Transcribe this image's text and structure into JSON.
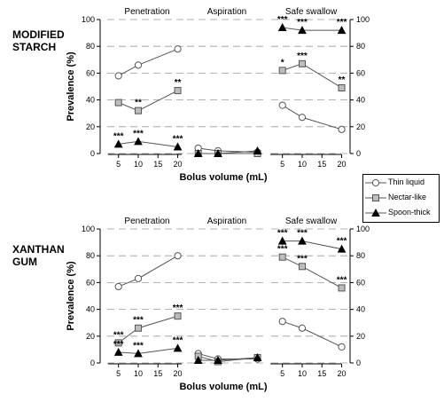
{
  "row_labels": {
    "top": "MODIFIED\nSTARCH",
    "bottom": "XANTHAN\nGUM"
  },
  "legend": [
    {
      "name": "Thin liquid",
      "marker": "circle",
      "fill": "#ffffff"
    },
    {
      "name": "Nectar-like",
      "marker": "square",
      "fill": "#bdbdbd"
    },
    {
      "name": "Spoon-thick",
      "marker": "triangle",
      "fill": "#000000"
    }
  ],
  "colors": {
    "line": "#555555",
    "grid": "#999999",
    "square_fill": "#bdbdbd",
    "triangle_fill": "#000000"
  },
  "chart_data": [
    {
      "type": "line",
      "row_label": "MODIFIED STARCH",
      "ylabel": "Prevalence (%)",
      "xlabel": "Bolus volume (mL)",
      "ylim": [
        0,
        100
      ],
      "yticks": [
        0,
        20,
        40,
        60,
        80,
        100
      ],
      "x_ticks": [
        5,
        10,
        15,
        20
      ],
      "grid": "dashed horizontal",
      "panels": [
        {
          "title": "Penetration",
          "x": [
            5,
            10,
            20
          ],
          "series": [
            {
              "name": "Thin liquid",
              "values": [
                58,
                66,
                78
              ],
              "annotations": [
                "",
                "",
                ""
              ]
            },
            {
              "name": "Nectar-like",
              "values": [
                38,
                32,
                47
              ],
              "annotations": [
                "",
                "**",
                "**"
              ]
            },
            {
              "name": "Spoon-thick",
              "values": [
                7,
                9,
                5
              ],
              "annotations": [
                "***",
                "***",
                "***"
              ]
            }
          ]
        },
        {
          "title": "Aspiration",
          "x": [
            5,
            10,
            20
          ],
          "series": [
            {
              "name": "Thin liquid",
              "values": [
                4,
                2,
                1
              ],
              "annotations": [
                "",
                "",
                ""
              ]
            },
            {
              "name": "Nectar-like",
              "values": [
                0,
                0,
                0
              ],
              "annotations": [
                "",
                "",
                ""
              ]
            },
            {
              "name": "Spoon-thick",
              "values": [
                0,
                0,
                2
              ],
              "annotations": [
                "",
                "",
                ""
              ]
            }
          ]
        },
        {
          "title": "Safe swallow",
          "x": [
            5,
            10,
            20
          ],
          "series": [
            {
              "name": "Thin liquid",
              "values": [
                36,
                27,
                18
              ],
              "annotations": [
                "",
                "",
                ""
              ]
            },
            {
              "name": "Nectar-like",
              "values": [
                62,
                67,
                49
              ],
              "annotations": [
                "*",
                "***",
                "**"
              ]
            },
            {
              "name": "Spoon-thick",
              "values": [
                94,
                92,
                92
              ],
              "annotations": [
                "***",
                "***",
                "***"
              ]
            }
          ]
        }
      ]
    },
    {
      "type": "line",
      "row_label": "XANTHAN GUM",
      "ylabel": "Prevalence (%)",
      "xlabel": "Bolus volume (mL)",
      "ylim": [
        0,
        100
      ],
      "yticks": [
        0,
        20,
        40,
        60,
        80,
        100
      ],
      "x_ticks": [
        5,
        10,
        15,
        20
      ],
      "grid": "dashed horizontal",
      "panels": [
        {
          "title": "Penetration",
          "x": [
            5,
            10,
            20
          ],
          "series": [
            {
              "name": "Thin liquid",
              "values": [
                57,
                63,
                80
              ],
              "annotations": [
                "",
                "",
                ""
              ]
            },
            {
              "name": "Nectar-like",
              "values": [
                15,
                26,
                35
              ],
              "annotations": [
                "***",
                "***",
                "***"
              ]
            },
            {
              "name": "Spoon-thick",
              "values": [
                8,
                7,
                11
              ],
              "annotations": [
                "***",
                "***",
                "***"
              ]
            }
          ]
        },
        {
          "title": "Aspiration",
          "x": [
            5,
            10,
            20
          ],
          "series": [
            {
              "name": "Thin liquid",
              "values": [
                7,
                3,
                3
              ],
              "annotations": [
                "",
                "",
                ""
              ]
            },
            {
              "name": "Nectar-like",
              "values": [
                5,
                1,
                4
              ],
              "annotations": [
                "",
                "",
                ""
              ]
            },
            {
              "name": "Spoon-thick",
              "values": [
                2,
                2,
                4
              ],
              "annotations": [
                "",
                "",
                ""
              ]
            }
          ]
        },
        {
          "title": "Safe swallow",
          "x": [
            5,
            10,
            20
          ],
          "series": [
            {
              "name": "Thin liquid",
              "values": [
                31,
                26,
                12
              ],
              "annotations": [
                "",
                "",
                ""
              ]
            },
            {
              "name": "Nectar-like",
              "values": [
                79,
                72,
                56
              ],
              "annotations": [
                "***",
                "***",
                "***"
              ]
            },
            {
              "name": "Spoon-thick",
              "values": [
                91,
                91,
                85
              ],
              "annotations": [
                "***",
                "***",
                "***"
              ]
            }
          ]
        }
      ]
    }
  ]
}
